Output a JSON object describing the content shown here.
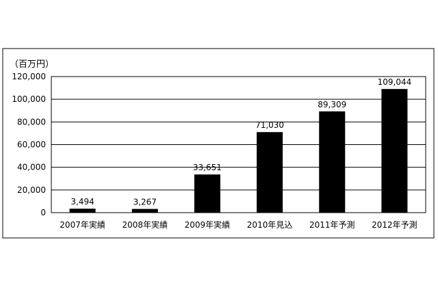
{
  "chart_data": {
    "type": "bar",
    "ylabel": "（百万円）",
    "categories": [
      "2007年実績",
      "2008年実績",
      "2009年実績",
      "2010年見込",
      "2011年予測",
      "2012年予測"
    ],
    "values": [
      3494,
      3267,
      33651,
      71030,
      89309,
      109044
    ],
    "value_labels": [
      "3,494",
      "3,267",
      "33,651",
      "71,030",
      "89,309",
      "109,044"
    ],
    "ylim": [
      0,
      120000
    ],
    "yticks": [
      0,
      20000,
      40000,
      60000,
      80000,
      100000,
      120000
    ],
    "ytick_labels": [
      "0",
      "20,000",
      "40,000",
      "60,000",
      "80,000",
      "100,000",
      "120,000"
    ],
    "grid": true,
    "colors": {
      "bar": "#000000",
      "grid": "#000000",
      "frame": "#000000"
    }
  }
}
